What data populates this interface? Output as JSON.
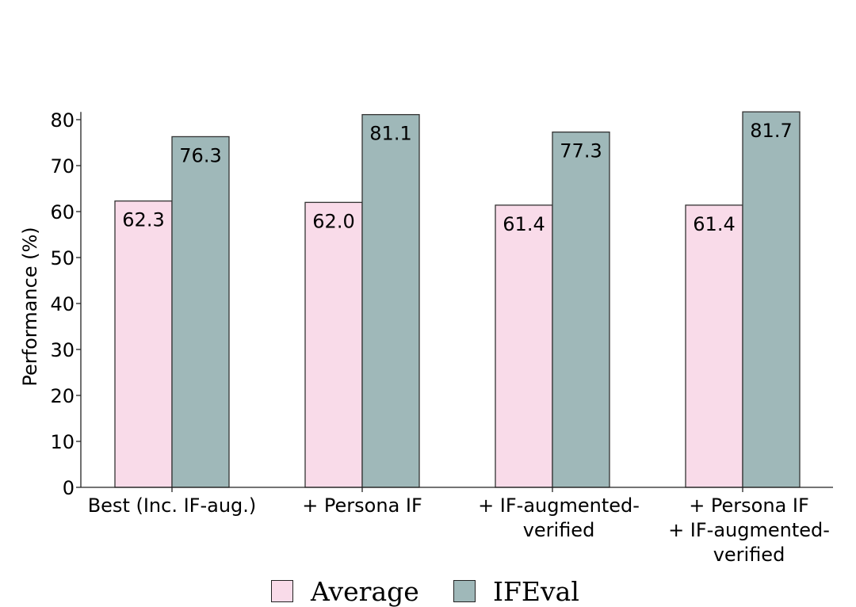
{
  "chart_data": {
    "type": "bar",
    "categories": [
      [
        "Best (Inc. IF-aug.)"
      ],
      [
        "+ Persona IF"
      ],
      [
        "+ IF-augmented-",
        "verified"
      ],
      [
        "+ Persona IF",
        "+ IF-augmented-",
        "verified"
      ]
    ],
    "series": [
      {
        "name": "Average",
        "values": [
          62.3,
          62.0,
          61.4,
          61.4
        ],
        "color": "#f9dbe9",
        "labels": [
          "62.3",
          "62.0",
          "61.4",
          "61.4"
        ]
      },
      {
        "name": "IFEval",
        "values": [
          76.3,
          81.1,
          77.3,
          81.7
        ],
        "color": "#9fb8b9",
        "labels": [
          "76.3",
          "81.1",
          "77.3",
          "81.7"
        ]
      }
    ],
    "title": "",
    "xlabel": "",
    "ylabel": "Performance (%)",
    "ylim": [
      0,
      86
    ],
    "yticks": [
      0,
      10,
      20,
      30,
      40,
      50,
      60,
      70,
      80
    ],
    "grid": false,
    "legend": "bottom"
  }
}
